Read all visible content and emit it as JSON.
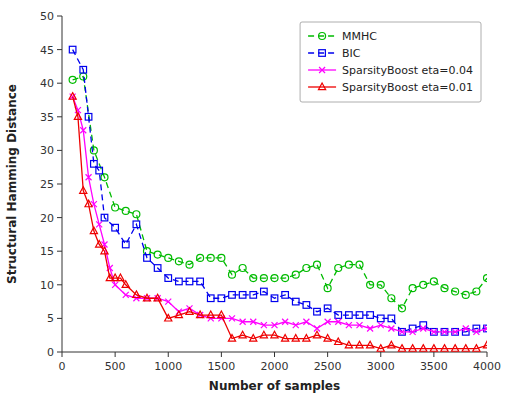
{
  "chart_data": {
    "type": "line",
    "xlabel": "Number of samples",
    "ylabel": "Structural Hamming Distance",
    "xlim": [
      0,
      4000
    ],
    "ylim": [
      0,
      50
    ],
    "xticks": [
      0,
      500,
      1000,
      1500,
      2000,
      2500,
      3000,
      3500,
      4000
    ],
    "yticks": [
      0,
      5,
      10,
      15,
      20,
      25,
      30,
      35,
      40,
      45,
      50
    ],
    "grid": false,
    "legend": "upper right",
    "series": [
      {
        "name": "MMHC",
        "color": "#00bb00",
        "marker": "circle",
        "line_style": "dashed",
        "x": [
          100,
          200,
          300,
          400,
          500,
          600,
          700,
          800,
          900,
          1000,
          1100,
          1200,
          1300,
          1400,
          1500,
          1600,
          1700,
          1800,
          1900,
          2000,
          2100,
          2200,
          2300,
          2400,
          2500,
          2600,
          2700,
          2800,
          2900,
          3000,
          3100,
          3200,
          3300,
          3400,
          3500,
          3600,
          3700,
          3800,
          3900,
          4000
        ],
        "values": [
          40.5,
          41.0,
          30.0,
          26.0,
          21.5,
          21.0,
          20.5,
          15.0,
          14.5,
          14.0,
          13.5,
          13.0,
          14.0,
          14.0,
          14.0,
          11.5,
          12.5,
          11.0,
          11.0,
          11.0,
          11.0,
          11.5,
          12.5,
          13.0,
          9.5,
          12.5,
          13.0,
          13.0,
          10.0,
          10.0,
          8.0,
          6.5,
          9.5,
          10.0,
          10.5,
          9.5,
          9.0,
          8.5,
          9.0,
          11.0
        ]
      },
      {
        "name": "BIC",
        "color": "#0000ee",
        "marker": "square",
        "line_style": "dashed",
        "x": [
          100,
          200,
          250,
          300,
          350,
          400,
          500,
          600,
          700,
          800,
          900,
          1000,
          1100,
          1200,
          1300,
          1400,
          1500,
          1600,
          1700,
          1800,
          1900,
          2000,
          2100,
          2200,
          2300,
          2400,
          2500,
          2600,
          2700,
          2800,
          2900,
          3000,
          3100,
          3200,
          3300,
          3400,
          3500,
          3600,
          3700,
          3800,
          3900,
          4000
        ],
        "values": [
          45.0,
          42.0,
          35.0,
          28.0,
          27.0,
          20.0,
          18.5,
          16.0,
          19.0,
          14.0,
          12.5,
          11.0,
          10.5,
          10.5,
          10.5,
          8.0,
          8.0,
          8.5,
          8.5,
          8.5,
          9.0,
          8.0,
          8.5,
          7.5,
          7.0,
          6.0,
          6.5,
          5.5,
          5.5,
          5.5,
          5.5,
          5.0,
          5.0,
          3.0,
          3.5,
          4.0,
          3.0,
          3.0,
          3.0,
          3.0,
          3.5,
          3.5
        ]
      },
      {
        "name": "SparsityBoost eta=0.04",
        "color": "#ff00ff",
        "marker": "x",
        "line_style": "solid",
        "x": [
          100,
          150,
          200,
          250,
          300,
          350,
          400,
          450,
          500,
          600,
          700,
          800,
          900,
          1000,
          1100,
          1200,
          1300,
          1400,
          1500,
          1600,
          1700,
          1800,
          1900,
          2000,
          2100,
          2200,
          2300,
          2400,
          2500,
          2600,
          2700,
          2800,
          2900,
          3000,
          3100,
          3200,
          3300,
          3400,
          3500,
          3600,
          3700,
          3800,
          3900,
          4000
        ],
        "values": [
          38.0,
          36.0,
          33.0,
          26.0,
          22.0,
          19.0,
          16.0,
          12.5,
          10.0,
          8.5,
          8.0,
          8.0,
          8.0,
          7.5,
          6.0,
          6.5,
          5.5,
          5.0,
          5.0,
          5.0,
          4.5,
          4.5,
          4.0,
          4.0,
          4.5,
          4.0,
          4.5,
          3.5,
          4.5,
          4.5,
          4.0,
          4.0,
          3.5,
          4.0,
          3.5,
          3.0,
          3.0,
          3.5,
          3.0,
          3.0,
          3.0,
          3.5,
          3.0,
          3.5
        ]
      },
      {
        "name": "SparsityBoost eta=0.01",
        "color": "#ee0000",
        "marker": "triangle",
        "line_style": "solid",
        "x": [
          100,
          150,
          200,
          250,
          300,
          350,
          400,
          450,
          500,
          550,
          600,
          700,
          800,
          900,
          1000,
          1100,
          1200,
          1300,
          1400,
          1500,
          1600,
          1700,
          1800,
          1900,
          2000,
          2100,
          2200,
          2300,
          2400,
          2500,
          2600,
          2700,
          2800,
          2900,
          3000,
          3100,
          3200,
          3300,
          3400,
          3500,
          3600,
          3700,
          3800,
          3900,
          4000
        ],
        "values": [
          38.0,
          35.0,
          24.0,
          22.0,
          18.0,
          16.0,
          15.0,
          11.0,
          11.0,
          11.0,
          10.0,
          8.5,
          8.0,
          8.0,
          5.0,
          5.5,
          6.0,
          5.5,
          5.5,
          5.5,
          2.0,
          2.5,
          2.0,
          2.5,
          2.5,
          2.0,
          2.0,
          2.0,
          2.5,
          2.0,
          1.5,
          1.0,
          1.0,
          1.0,
          0.5,
          1.0,
          0.5,
          0.5,
          0.5,
          0.5,
          0.5,
          0.5,
          0.5,
          0.5,
          1.0
        ]
      }
    ]
  }
}
